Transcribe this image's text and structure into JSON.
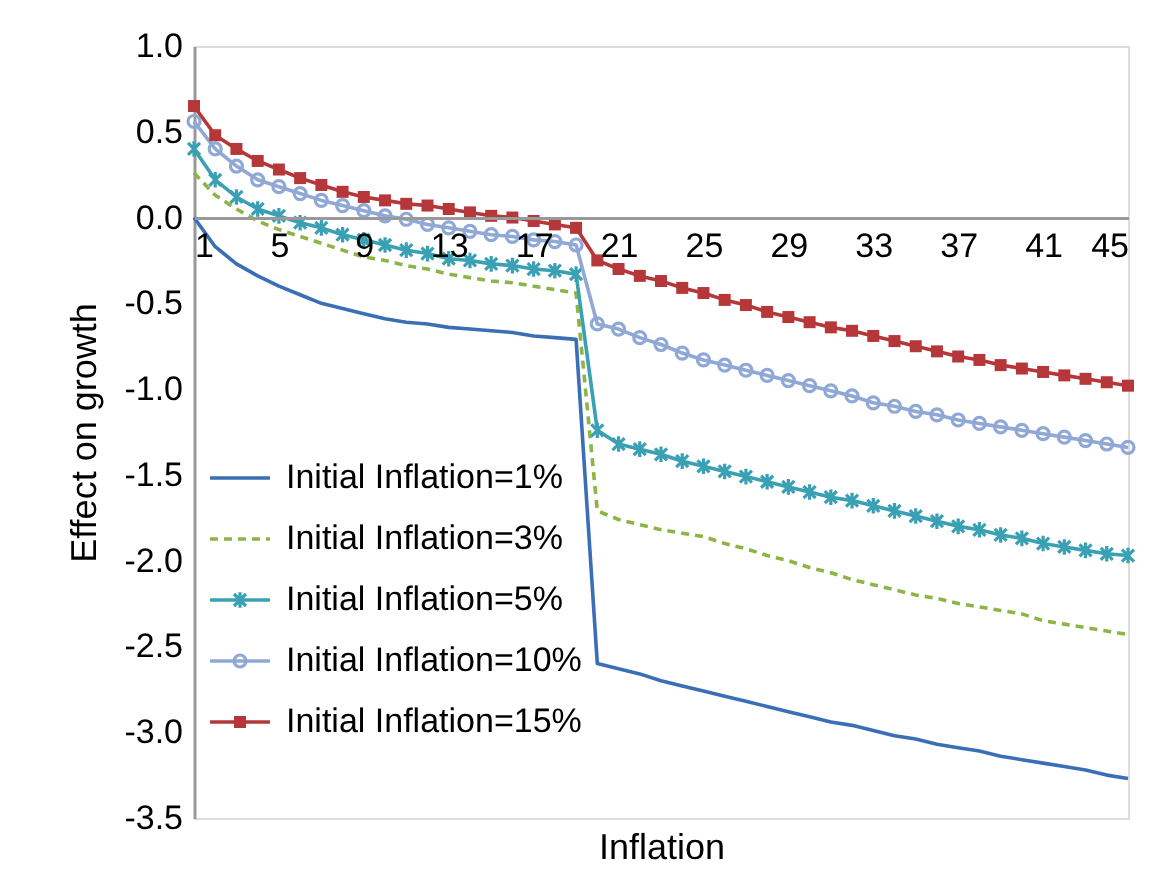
{
  "chart_data": {
    "type": "line",
    "xlabel": "Inflation",
    "ylabel": "Effect on growth",
    "x": [
      1,
      2,
      3,
      4,
      5,
      6,
      7,
      8,
      9,
      10,
      11,
      12,
      13,
      14,
      15,
      16,
      17,
      18,
      19,
      20,
      21,
      22,
      23,
      24,
      25,
      26,
      27,
      28,
      29,
      30,
      31,
      32,
      33,
      34,
      35,
      36,
      37,
      38,
      39,
      40,
      41,
      42,
      43,
      44,
      45
    ],
    "xlim": [
      1,
      45
    ],
    "xticks": [
      1,
      5,
      9,
      13,
      17,
      21,
      25,
      29,
      33,
      37,
      41,
      45
    ],
    "ylim": [
      -3.5,
      1.0
    ],
    "yticks": [
      {
        "value": 1.0,
        "label": "1.0"
      },
      {
        "value": 0.5,
        "label": "0.5"
      },
      {
        "value": 0,
        "label": "0.0"
      },
      {
        "value": -0.5,
        "label": "-0.5"
      },
      {
        "value": -1.0,
        "label": "-1.0"
      },
      {
        "value": -1.5,
        "label": "-1.5"
      },
      {
        "value": -2.0,
        "label": "-2.0"
      },
      {
        "value": -2.5,
        "label": "-2.5"
      },
      {
        "value": -3.0,
        "label": "-3.0"
      },
      {
        "value": -3.5,
        "label": "-3.5"
      }
    ],
    "grid": false,
    "legend": "bottom left",
    "series": [
      {
        "name": "Initial Inflation=1%",
        "color": "#3a6eb6",
        "marker": "none",
        "line_style": "solid",
        "values": [
          0.0,
          -0.17,
          -0.27,
          -0.34,
          -0.4,
          -0.45,
          -0.5,
          -0.53,
          -0.56,
          -0.59,
          -0.61,
          -0.62,
          -0.64,
          -0.65,
          -0.66,
          -0.67,
          -0.69,
          -0.7,
          -0.71,
          -2.6,
          -2.63,
          -2.66,
          -2.7,
          -2.73,
          -2.76,
          -2.79,
          -2.82,
          -2.85,
          -2.88,
          -2.91,
          -2.94,
          -2.96,
          -2.99,
          -3.02,
          -3.04,
          -3.07,
          -3.09,
          -3.11,
          -3.14,
          -3.16,
          -3.18,
          -3.2,
          -3.22,
          -3.25,
          -3.27
        ]
      },
      {
        "name": "Initial Inflation=3%",
        "color": "#8db446",
        "marker": "none",
        "line_style": "dashed",
        "values": [
          0.26,
          0.13,
          0.05,
          -0.02,
          -0.07,
          -0.11,
          -0.15,
          -0.19,
          -0.23,
          -0.25,
          -0.28,
          -0.3,
          -0.33,
          -0.35,
          -0.37,
          -0.38,
          -0.4,
          -0.42,
          -0.44,
          -1.71,
          -1.76,
          -1.79,
          -1.82,
          -1.84,
          -1.86,
          -1.9,
          -1.93,
          -1.97,
          -2.0,
          -2.04,
          -2.07,
          -2.11,
          -2.14,
          -2.17,
          -2.2,
          -2.22,
          -2.25,
          -2.27,
          -2.29,
          -2.31,
          -2.35,
          -2.37,
          -2.39,
          -2.41,
          -2.43
        ]
      },
      {
        "name": "Initial Inflation=5%",
        "color": "#3aa0b4",
        "marker": "cross",
        "line_style": "solid",
        "values": [
          0.4,
          0.22,
          0.12,
          0.05,
          0.01,
          -0.03,
          -0.06,
          -0.1,
          -0.13,
          -0.16,
          -0.19,
          -0.21,
          -0.24,
          -0.25,
          -0.27,
          -0.28,
          -0.3,
          -0.31,
          -0.33,
          -1.24,
          -1.32,
          -1.35,
          -1.38,
          -1.42,
          -1.45,
          -1.48,
          -1.51,
          -1.54,
          -1.57,
          -1.6,
          -1.63,
          -1.65,
          -1.68,
          -1.71,
          -1.74,
          -1.77,
          -1.8,
          -1.82,
          -1.85,
          -1.87,
          -1.9,
          -1.92,
          -1.94,
          -1.96,
          -1.97
        ]
      },
      {
        "name": "Initial Inflation=10%",
        "color": "#8fa8d6",
        "marker": "circle",
        "line_style": "solid",
        "values": [
          0.56,
          0.4,
          0.3,
          0.22,
          0.18,
          0.14,
          0.1,
          0.07,
          0.04,
          0.01,
          -0.01,
          -0.04,
          -0.06,
          -0.08,
          -0.1,
          -0.11,
          -0.13,
          -0.14,
          -0.16,
          -0.62,
          -0.65,
          -0.7,
          -0.74,
          -0.79,
          -0.83,
          -0.86,
          -0.89,
          -0.92,
          -0.95,
          -0.98,
          -1.01,
          -1.04,
          -1.08,
          -1.1,
          -1.13,
          -1.15,
          -1.18,
          -1.2,
          -1.22,
          -1.24,
          -1.26,
          -1.28,
          -1.3,
          -1.32,
          -1.34
        ]
      },
      {
        "name": "Initial Inflation=15%",
        "color": "#b5373a",
        "marker": "square",
        "line_style": "solid",
        "values": [
          0.65,
          0.48,
          0.4,
          0.33,
          0.28,
          0.23,
          0.19,
          0.15,
          0.12,
          0.1,
          0.08,
          0.07,
          0.05,
          0.03,
          0.01,
          0.0,
          -0.02,
          -0.04,
          -0.06,
          -0.25,
          -0.3,
          -0.34,
          -0.37,
          -0.41,
          -0.44,
          -0.48,
          -0.51,
          -0.55,
          -0.58,
          -0.61,
          -0.64,
          -0.66,
          -0.69,
          -0.72,
          -0.75,
          -0.78,
          -0.81,
          -0.83,
          -0.86,
          -0.88,
          -0.9,
          -0.92,
          -0.94,
          -0.96,
          -0.98
        ]
      }
    ]
  }
}
